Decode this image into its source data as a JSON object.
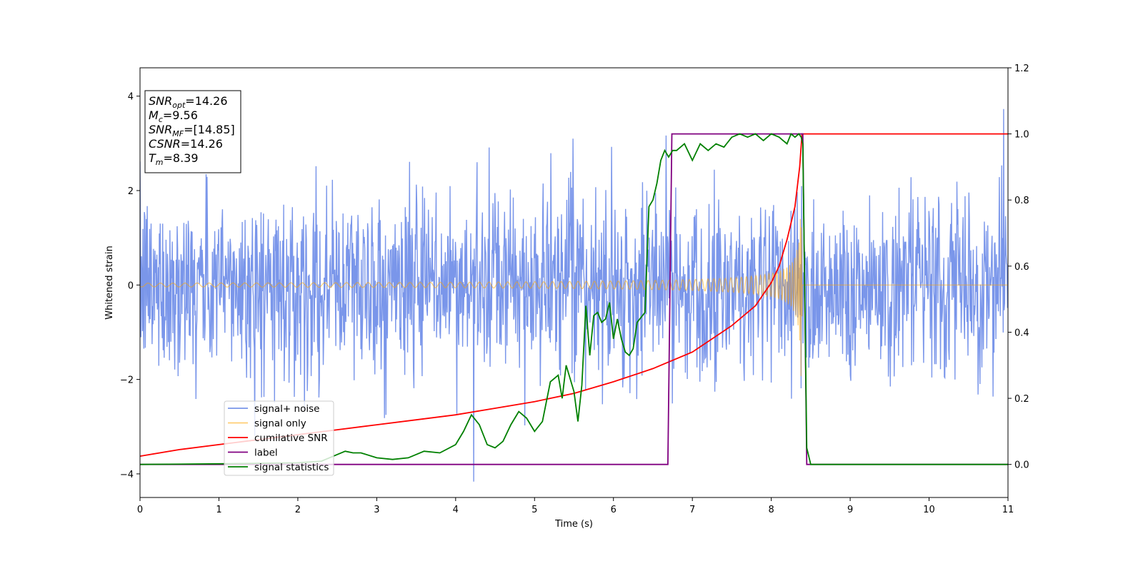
{
  "chart_data": {
    "type": "line",
    "xlabel": "Time (s)",
    "ylabel": "Whitened strain",
    "xlim": [
      0,
      11
    ],
    "ylim": [
      -4.5,
      4.6
    ],
    "y2lim": [
      -0.1,
      1.2
    ],
    "x_ticks": [
      0,
      1,
      2,
      3,
      4,
      5,
      6,
      7,
      8,
      9,
      10,
      11
    ],
    "y_ticks": [
      -4,
      -2,
      0,
      2,
      4
    ],
    "y2_ticks": [
      "0.0",
      "0.2",
      "0.4",
      "0.6",
      "0.8",
      "1.0",
      "1.2"
    ],
    "grid": false,
    "legend_position": "lower-left",
    "info_box": {
      "position": "upper-left",
      "lines": [
        {
          "base": "SNR",
          "sub": "opt",
          "value": "=14.26"
        },
        {
          "base": "M",
          "sub": "c",
          "value": "=9.56"
        },
        {
          "base": "SNR",
          "sub": "MF",
          "value": "=[14.85]"
        },
        {
          "base": "CSNR",
          "sub": "",
          "value": "=14.26"
        },
        {
          "base": "T",
          "sub": "m",
          "value": "=8.39"
        }
      ]
    },
    "series": [
      {
        "name": "signal+ noise",
        "axis": "left",
        "color": "#4169e1",
        "description_values": {
          "noise_std": 1.0,
          "envelope_peak": 4.1
        }
      },
      {
        "name": "signal only",
        "axis": "left",
        "color": "#ffa500",
        "chirp": {
          "t_start": 0,
          "t_merger": 8.39,
          "amp_start": 0.04,
          "amp_peak": 2.7
        }
      },
      {
        "name": "cumilative SNR",
        "axis": "right",
        "color": "#ff0000",
        "points": [
          [
            0,
            0.025
          ],
          [
            0.5,
            0.045
          ],
          [
            1,
            0.06
          ],
          [
            1.5,
            0.075
          ],
          [
            2,
            0.09
          ],
          [
            2.5,
            0.105
          ],
          [
            3,
            0.12
          ],
          [
            3.5,
            0.135
          ],
          [
            4,
            0.15
          ],
          [
            4.5,
            0.17
          ],
          [
            5,
            0.19
          ],
          [
            5.5,
            0.215
          ],
          [
            6,
            0.25
          ],
          [
            6.5,
            0.29
          ],
          [
            7,
            0.34
          ],
          [
            7.5,
            0.42
          ],
          [
            7.8,
            0.48
          ],
          [
            8,
            0.55
          ],
          [
            8.1,
            0.6
          ],
          [
            8.2,
            0.68
          ],
          [
            8.3,
            0.78
          ],
          [
            8.36,
            0.9
          ],
          [
            8.39,
            1.0
          ],
          [
            8.5,
            1.0
          ],
          [
            9,
            1.0
          ],
          [
            10,
            1.0
          ],
          [
            11,
            1.0
          ]
        ]
      },
      {
        "name": "label",
        "axis": "right",
        "color": "#800080",
        "points": [
          [
            0,
            0
          ],
          [
            6.69,
            0
          ],
          [
            6.74,
            1
          ],
          [
            8.4,
            1
          ],
          [
            8.45,
            0
          ],
          [
            11,
            0
          ]
        ]
      },
      {
        "name": "signal statistics",
        "axis": "right",
        "color": "#008000",
        "points": [
          [
            0,
            0
          ],
          [
            1,
            0.002
          ],
          [
            2,
            0.005
          ],
          [
            2.3,
            0.01
          ],
          [
            2.5,
            0.03
          ],
          [
            2.6,
            0.04
          ],
          [
            2.7,
            0.035
          ],
          [
            2.8,
            0.035
          ],
          [
            3.0,
            0.02
          ],
          [
            3.2,
            0.015
          ],
          [
            3.4,
            0.02
          ],
          [
            3.6,
            0.04
          ],
          [
            3.8,
            0.035
          ],
          [
            4.0,
            0.06
          ],
          [
            4.1,
            0.1
          ],
          [
            4.2,
            0.15
          ],
          [
            4.3,
            0.12
          ],
          [
            4.4,
            0.06
          ],
          [
            4.5,
            0.05
          ],
          [
            4.6,
            0.07
          ],
          [
            4.7,
            0.12
          ],
          [
            4.8,
            0.16
          ],
          [
            4.9,
            0.14
          ],
          [
            5.0,
            0.1
          ],
          [
            5.1,
            0.13
          ],
          [
            5.2,
            0.25
          ],
          [
            5.3,
            0.27
          ],
          [
            5.35,
            0.2
          ],
          [
            5.4,
            0.3
          ],
          [
            5.5,
            0.22
          ],
          [
            5.55,
            0.13
          ],
          [
            5.6,
            0.24
          ],
          [
            5.65,
            0.48
          ],
          [
            5.7,
            0.33
          ],
          [
            5.75,
            0.45
          ],
          [
            5.8,
            0.46
          ],
          [
            5.85,
            0.43
          ],
          [
            5.9,
            0.44
          ],
          [
            5.95,
            0.49
          ],
          [
            6.0,
            0.38
          ],
          [
            6.05,
            0.44
          ],
          [
            6.1,
            0.38
          ],
          [
            6.15,
            0.34
          ],
          [
            6.2,
            0.33
          ],
          [
            6.25,
            0.35
          ],
          [
            6.3,
            0.43
          ],
          [
            6.4,
            0.46
          ],
          [
            6.45,
            0.78
          ],
          [
            6.5,
            0.8
          ],
          [
            6.55,
            0.85
          ],
          [
            6.6,
            0.92
          ],
          [
            6.65,
            0.95
          ],
          [
            6.7,
            0.93
          ],
          [
            6.75,
            0.95
          ],
          [
            6.8,
            0.95
          ],
          [
            6.9,
            0.97
          ],
          [
            7.0,
            0.92
          ],
          [
            7.1,
            0.97
          ],
          [
            7.2,
            0.95
          ],
          [
            7.3,
            0.97
          ],
          [
            7.4,
            0.96
          ],
          [
            7.5,
            0.99
          ],
          [
            7.6,
            1.0
          ],
          [
            7.7,
            0.99
          ],
          [
            7.8,
            1.0
          ],
          [
            7.9,
            0.98
          ],
          [
            8.0,
            1.0
          ],
          [
            8.1,
            0.99
          ],
          [
            8.15,
            0.98
          ],
          [
            8.2,
            0.97
          ],
          [
            8.25,
            1.0
          ],
          [
            8.3,
            0.99
          ],
          [
            8.35,
            1.0
          ],
          [
            8.38,
            0.99
          ],
          [
            8.4,
            0.97
          ],
          [
            8.45,
            0.05
          ],
          [
            8.5,
            0.0
          ],
          [
            9,
            0.0
          ],
          [
            10,
            0.0
          ],
          [
            11,
            0.0
          ]
        ]
      }
    ]
  }
}
